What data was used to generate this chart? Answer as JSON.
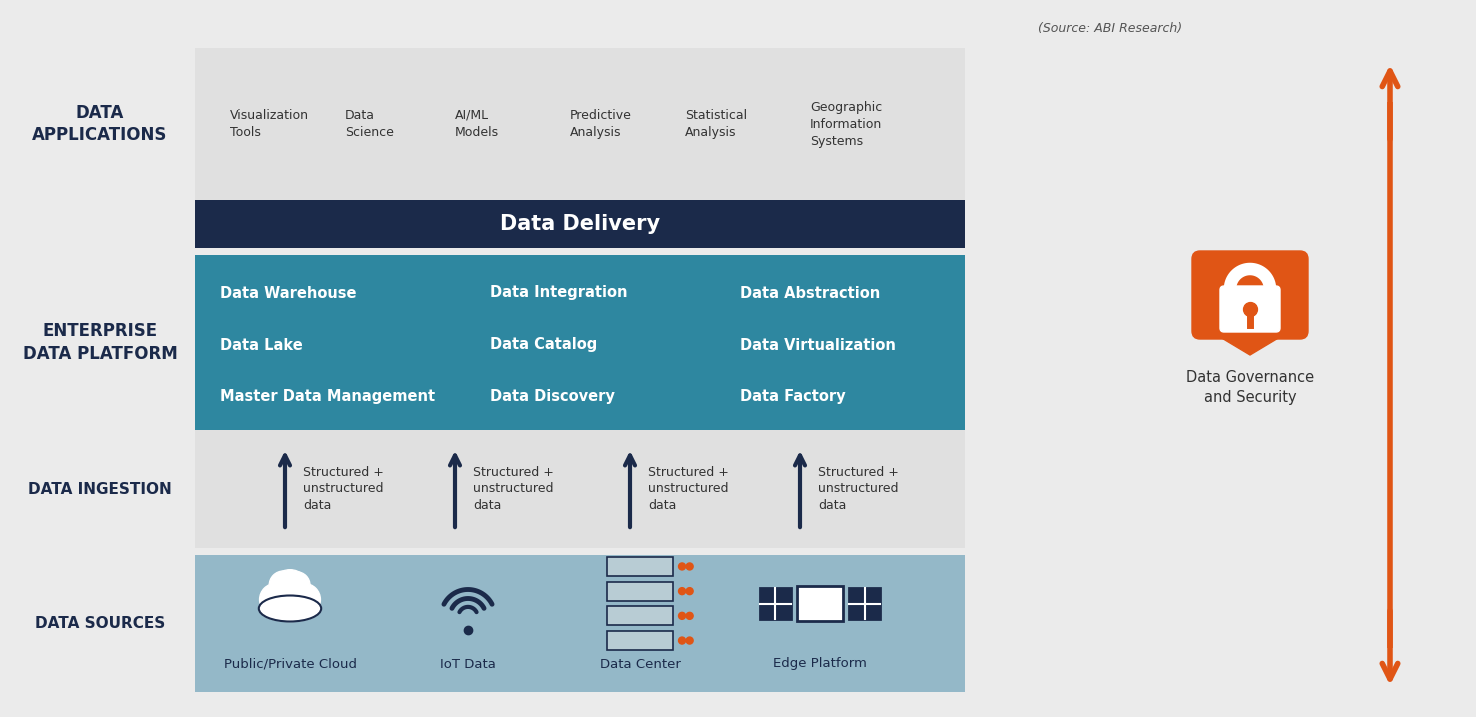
{
  "background_color": "#ebebeb",
  "source_text": "(Source: ABI Research)",
  "dark_navy": "#1b2a4a",
  "teal": "#2e87a0",
  "light_steel": "#94b8c8",
  "orange": "#e05515",
  "white": "#ffffff",
  "app_items": [
    "Visualization\nTools",
    "Data\nScience",
    "AI/ML\nModels",
    "Predictive\nAnalysis",
    "Statistical\nAnalysis",
    "Geographic\nInformation\nSystems"
  ],
  "data_delivery_text": "Data Delivery",
  "platform_col1": [
    "Data Warehouse",
    "Data Lake",
    "Master Data Management"
  ],
  "platform_col2": [
    "Data Integration",
    "Data Catalog",
    "Data Discovery"
  ],
  "platform_col3": [
    "Data Abstraction",
    "Data Virtualization",
    "Data Factory"
  ],
  "ingestion_text": "Structured +\nunstructured\ndata",
  "sources": [
    "Public/Private Cloud",
    "IoT Data",
    "Data Center",
    "Edge Platform"
  ],
  "governance_text": "Data Governance\nand Security",
  "row_label_app": "DATA\nAPPLICATIONS",
  "row_label_plat": "ENTERPRISE\nDATA PLATFORM",
  "row_label_ing": "DATA INGESTION",
  "row_label_src": "DATA SOURCES"
}
